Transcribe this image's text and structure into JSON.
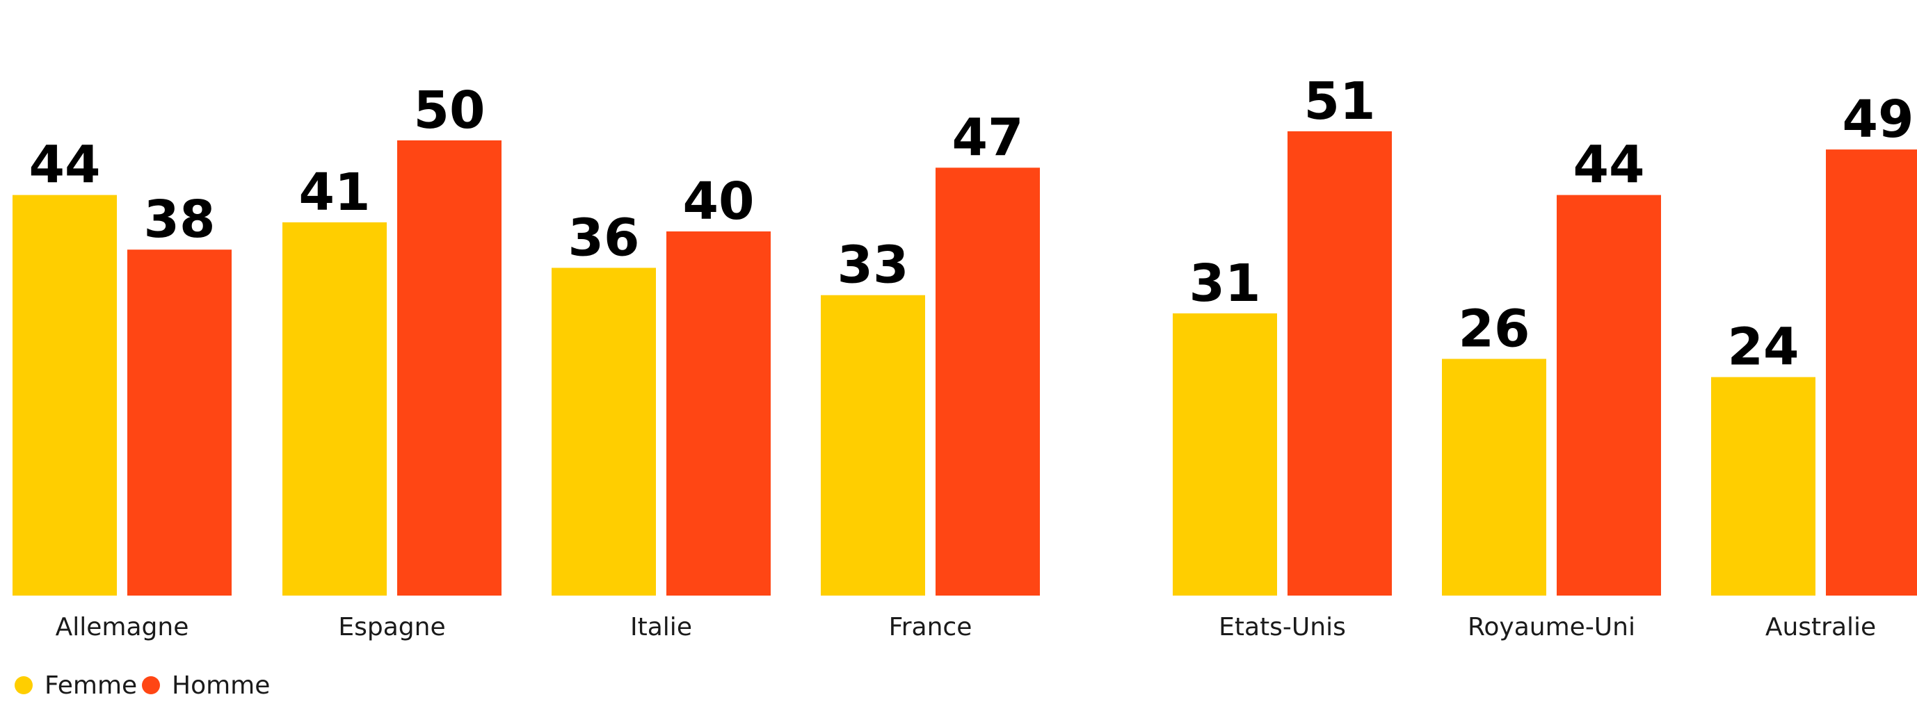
{
  "chart_data": {
    "type": "bar",
    "title": "",
    "xlabel": "",
    "ylabel": "",
    "ylim": [
      0,
      60
    ],
    "grid": false,
    "legend_position": "bottom-left",
    "categories": [
      "Allemagne",
      "Espagne",
      "Italie",
      "France",
      "Etats-Unis",
      "Royaume-Uni",
      "Australie"
    ],
    "series": [
      {
        "name": "Femme",
        "color": "#FFCE00",
        "values": [
          44,
          41,
          36,
          33,
          31,
          26,
          24
        ]
      },
      {
        "name": "Homme",
        "color": "#FF4614",
        "values": [
          38,
          50,
          40,
          47,
          51,
          44,
          49
        ]
      }
    ]
  }
}
